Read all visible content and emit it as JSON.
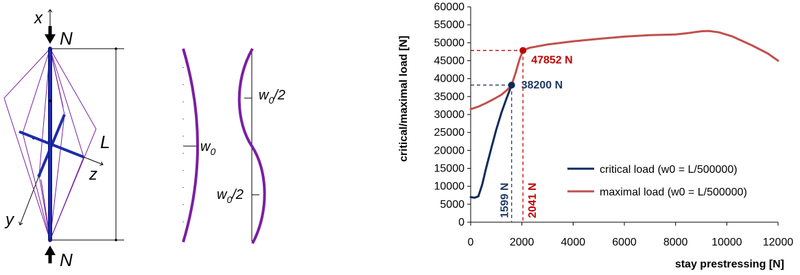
{
  "diagram": {
    "axis_x": "x",
    "axis_y": "y",
    "axis_z": "z",
    "force_top": "N",
    "force_bottom": "N",
    "length": "L",
    "imperfection_a": "w",
    "imperfection_a_sub": "0",
    "imperfection_b_top": "w",
    "imperfection_b_top_sub": "0",
    "imperfection_b_top_suffix": "/2",
    "imperfection_b_bottom": "w",
    "imperfection_b_bottom_sub": "0",
    "imperfection_b_bottom_suffix": "/2"
  },
  "colors": {
    "critical": "#0d2a5c",
    "maximal": "#c0504d",
    "annotation_red": "#c00000",
    "annotation_blue": "#1f3864",
    "column_blue": "#1e2ca8",
    "stay_purple": "#7a1fa2"
  },
  "chart_data": {
    "type": "line",
    "xlabel": "stay prestressing [N]",
    "ylabel": "critical/maximal load [N]",
    "xlim": [
      0,
      12000
    ],
    "ylim": [
      0,
      60000
    ],
    "xticks": [
      "0",
      "2000",
      "4000",
      "6000",
      "8000",
      "10000",
      "12000"
    ],
    "yticks": [
      "0",
      "5000",
      "10000",
      "15000",
      "20000",
      "25000",
      "30000",
      "35000",
      "40000",
      "45000",
      "50000",
      "55000",
      "60000"
    ],
    "grid": false,
    "legend_position": "bottom-right",
    "series": [
      {
        "name": "critical load (w0 = L/500000)",
        "color": "#0d2a5c",
        "x": [
          0,
          150,
          300,
          450,
          600,
          800,
          1000,
          1200,
          1400,
          1599
        ],
        "y": [
          7000,
          6800,
          7200,
          10500,
          15000,
          20500,
          25800,
          30500,
          34500,
          38200
        ]
      },
      {
        "name": "maximal load (w0 = L/500000)",
        "color": "#c0504d",
        "x": [
          0,
          300,
          600,
          900,
          1200,
          1400,
          1599,
          1750,
          1900,
          2041,
          2300,
          3000,
          4000,
          5000,
          6000,
          7000,
          8000,
          8500,
          9000,
          9300,
          9700,
          10200,
          11000,
          11600,
          12000
        ],
        "y": [
          31500,
          32200,
          33200,
          34300,
          35500,
          36700,
          38200,
          41500,
          45200,
          47852,
          48600,
          49500,
          50400,
          51100,
          51700,
          52100,
          52300,
          52700,
          53200,
          53300,
          52900,
          51800,
          49200,
          47000,
          45000
        ]
      }
    ],
    "annotations": [
      {
        "text": "47852 N",
        "x": 2041,
        "y": 47852,
        "color": "#c00000"
      },
      {
        "text": "38200 N",
        "x": 1599,
        "y": 38200,
        "color": "#1f3864"
      },
      {
        "text": "1599 N",
        "x": 1599,
        "orientation": "vertical",
        "color": "#1f3864"
      },
      {
        "text": "2041 N",
        "x": 2041,
        "orientation": "vertical",
        "color": "#c00000"
      }
    ]
  }
}
